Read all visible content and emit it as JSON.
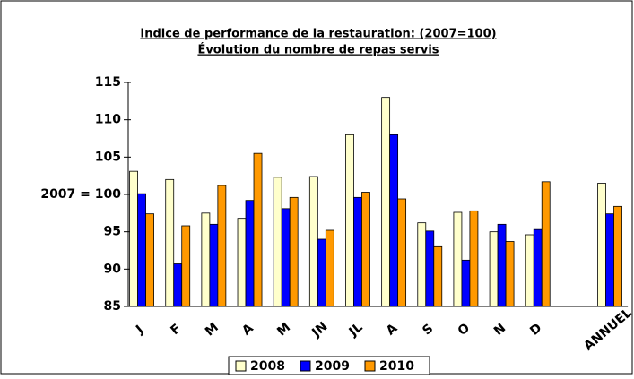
{
  "chart_data": {
    "type": "bar",
    "title": "Indice de performance de la restauration: (2007=100)",
    "subtitle": "Évolution du nombre de repas servis",
    "categories": [
      "J",
      "F",
      "M",
      "A",
      "M",
      "JN",
      "JL",
      "A",
      "S",
      "O",
      "N",
      "D",
      null,
      "ANNUEL"
    ],
    "series": [
      {
        "name": "2008",
        "color": "#ffffcc",
        "values": [
          103.1,
          102.0,
          97.5,
          96.8,
          102.3,
          102.4,
          108.0,
          113.0,
          96.2,
          97.6,
          95.0,
          94.6,
          null,
          101.5
        ]
      },
      {
        "name": "2009",
        "color": "#0000ff",
        "values": [
          100.1,
          90.7,
          96.0,
          99.2,
          98.1,
          94.0,
          99.6,
          108.0,
          95.1,
          91.2,
          96.0,
          95.3,
          null,
          97.4
        ]
      },
      {
        "name": "2010",
        "color": "#ff9900",
        "values": [
          97.4,
          95.8,
          101.2,
          105.5,
          99.6,
          95.2,
          100.3,
          99.4,
          93.0,
          97.8,
          93.7,
          101.7,
          null,
          98.4
        ]
      }
    ],
    "ylim": [
      85,
      115
    ],
    "yticks": [
      85,
      90,
      95,
      {
        "value": 100,
        "label": "2007 = 100"
      },
      105,
      110,
      115
    ],
    "grid": false,
    "legend": "bottom"
  }
}
